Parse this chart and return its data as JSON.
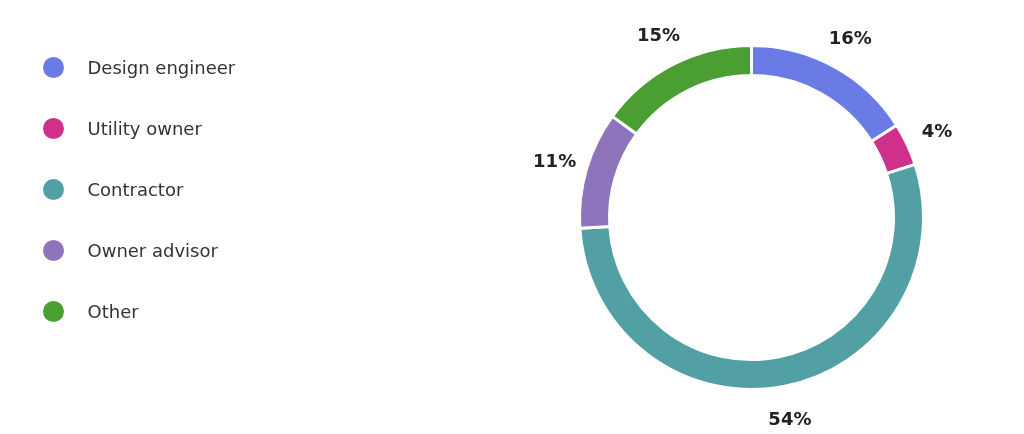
{
  "chart_data": {
    "type": "donut",
    "categories": [
      "Design engineer",
      "Utility owner",
      "Contractor",
      "Owner advisor",
      "Other"
    ],
    "values": [
      16,
      4,
      54,
      11,
      15
    ],
    "colors": [
      "#6a7be6",
      "#d0308a",
      "#52a0a4",
      "#8e74ba",
      "#4a9e32"
    ],
    "value_labels": [
      "16%",
      "4%",
      "54%",
      "11%",
      "15%"
    ],
    "legend": "left"
  }
}
